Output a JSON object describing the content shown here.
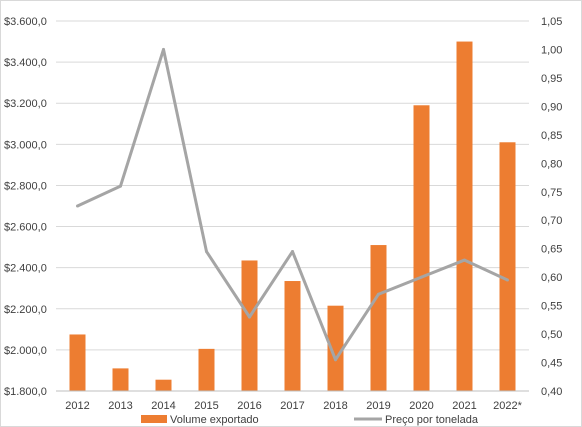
{
  "chart_data": {
    "type": "bar",
    "categories": [
      "2012",
      "2013",
      "2014",
      "2015",
      "2016",
      "2017",
      "2018",
      "2019",
      "2020",
      "2021",
      "2022*"
    ],
    "series": [
      {
        "name": "Volume exportado",
        "type": "bar",
        "axis": "left",
        "color": "#ED7D31",
        "values": [
          2075,
          1910,
          1855,
          2005,
          2435,
          2335,
          2215,
          2510,
          3190,
          3500,
          3010
        ]
      },
      {
        "name": "Preço por tonelada",
        "type": "line",
        "axis": "right",
        "color": "#A5A5A5",
        "values": [
          0.725,
          0.76,
          1.0,
          0.645,
          0.53,
          0.645,
          0.455,
          0.57,
          0.6,
          0.63,
          0.595
        ]
      }
    ],
    "ylim_left": [
      1800,
      3600
    ],
    "ylim_right": [
      0.4,
      1.05
    ],
    "yticks_left": [
      "$1.800,0",
      "$2.000,0",
      "$2.200,0",
      "$2.400,0",
      "$2.600,0",
      "$2.800,0",
      "$3.000,0",
      "$3.200,0",
      "$3.400,0",
      "$3.600,0"
    ],
    "yticks_right": [
      "0,40",
      "0,45",
      "0,50",
      "0,55",
      "0,60",
      "0,65",
      "0,70",
      "0,75",
      "0,80",
      "0,85",
      "0,90",
      "0,95",
      "1,00",
      "1,05"
    ],
    "grid": true,
    "legend_position": "bottom"
  }
}
